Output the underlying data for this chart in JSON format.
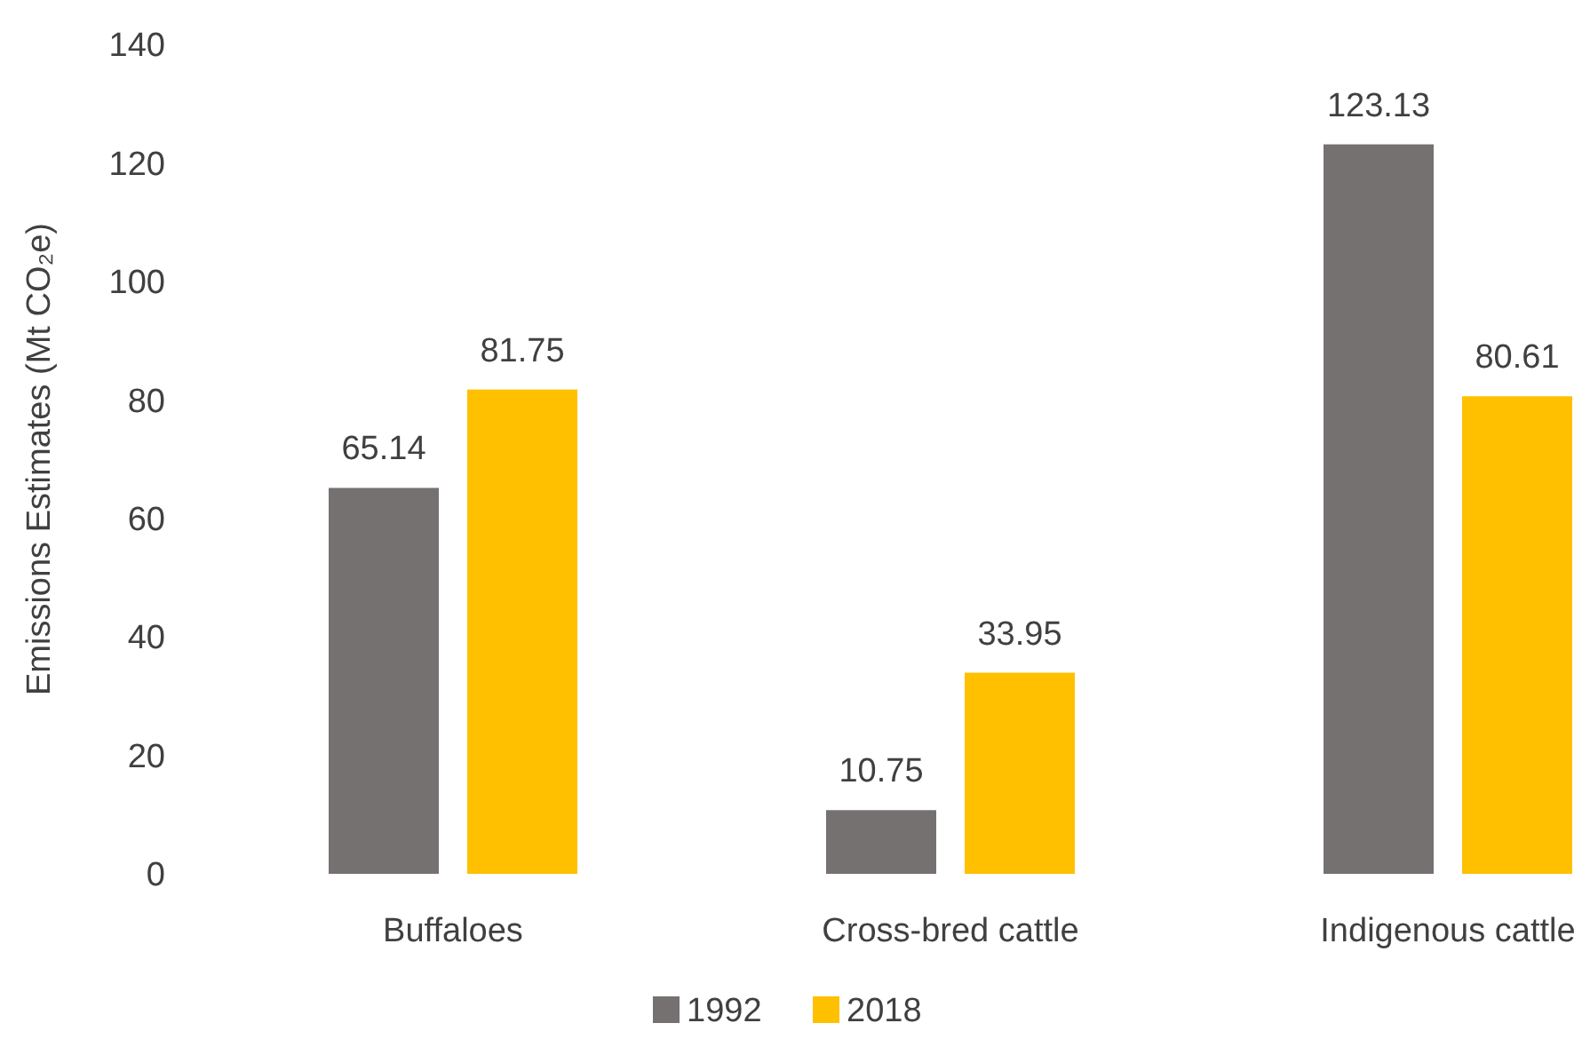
{
  "chart_data": {
    "type": "bar",
    "ylabel": "Emissions Estimates (Mt CO₂e)",
    "categories": [
      "Buffaloes",
      "Cross-bred cattle",
      "Indigenous cattle"
    ],
    "series": [
      {
        "name": "1992",
        "color": "#767171",
        "values": [
          65.14,
          10.75,
          123.13
        ]
      },
      {
        "name": "2018",
        "color": "#ffc000",
        "values": [
          81.75,
          33.95,
          80.61
        ]
      }
    ],
    "ylim": [
      0,
      140
    ],
    "yticks": [
      0,
      20,
      40,
      60,
      80,
      100,
      120,
      140
    ],
    "grid": false,
    "data_labels": true,
    "legend": "bottom"
  }
}
